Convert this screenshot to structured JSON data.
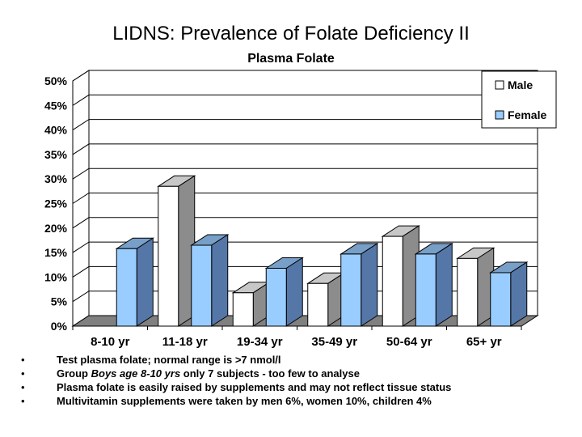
{
  "slide": {
    "title": "LIDNS: Prevalence of Folate Deficiency II",
    "subtitle": "Plasma Folate"
  },
  "chart_data": {
    "type": "bar",
    "title": "Plasma Folate",
    "categories": [
      "8-10 yr",
      "11-18 yr",
      "19-34 yr",
      "35-49 yr",
      "50-64 yr",
      "65+ yr"
    ],
    "series": [
      {
        "name": "Male",
        "values": [
          null,
          28.5,
          6.8,
          8.7,
          18.3,
          13.8
        ],
        "color": "#ffffff"
      },
      {
        "name": "Female",
        "values": [
          15.8,
          16.5,
          11.8,
          14.7,
          14.7,
          10.9
        ],
        "color": "#99ccff"
      }
    ],
    "y_ticks": [
      "0%",
      "5%",
      "10%",
      "15%",
      "20%",
      "25%",
      "30%",
      "35%",
      "40%",
      "45%",
      "50%"
    ],
    "ylim": [
      0,
      50
    ],
    "xlabel": "",
    "ylabel": "",
    "grid": true,
    "legend_position": "top-right",
    "style": "3d-clustered-column"
  },
  "notes": {
    "bullet_glyph": "•",
    "items": [
      {
        "text": "Test plasma folate; normal range is >7 nmol/l"
      },
      {
        "pre": "Group ",
        "italic": "Boys age 8-10 yrs",
        "post": " only 7 subjects - too few to analyse"
      },
      {
        "text": "Plasma folate is easily raised by supplements and may not reflect tissue status"
      },
      {
        "text": "Multivitamin supplements were taken by men 6%, women 10%, children 4%"
      }
    ]
  }
}
